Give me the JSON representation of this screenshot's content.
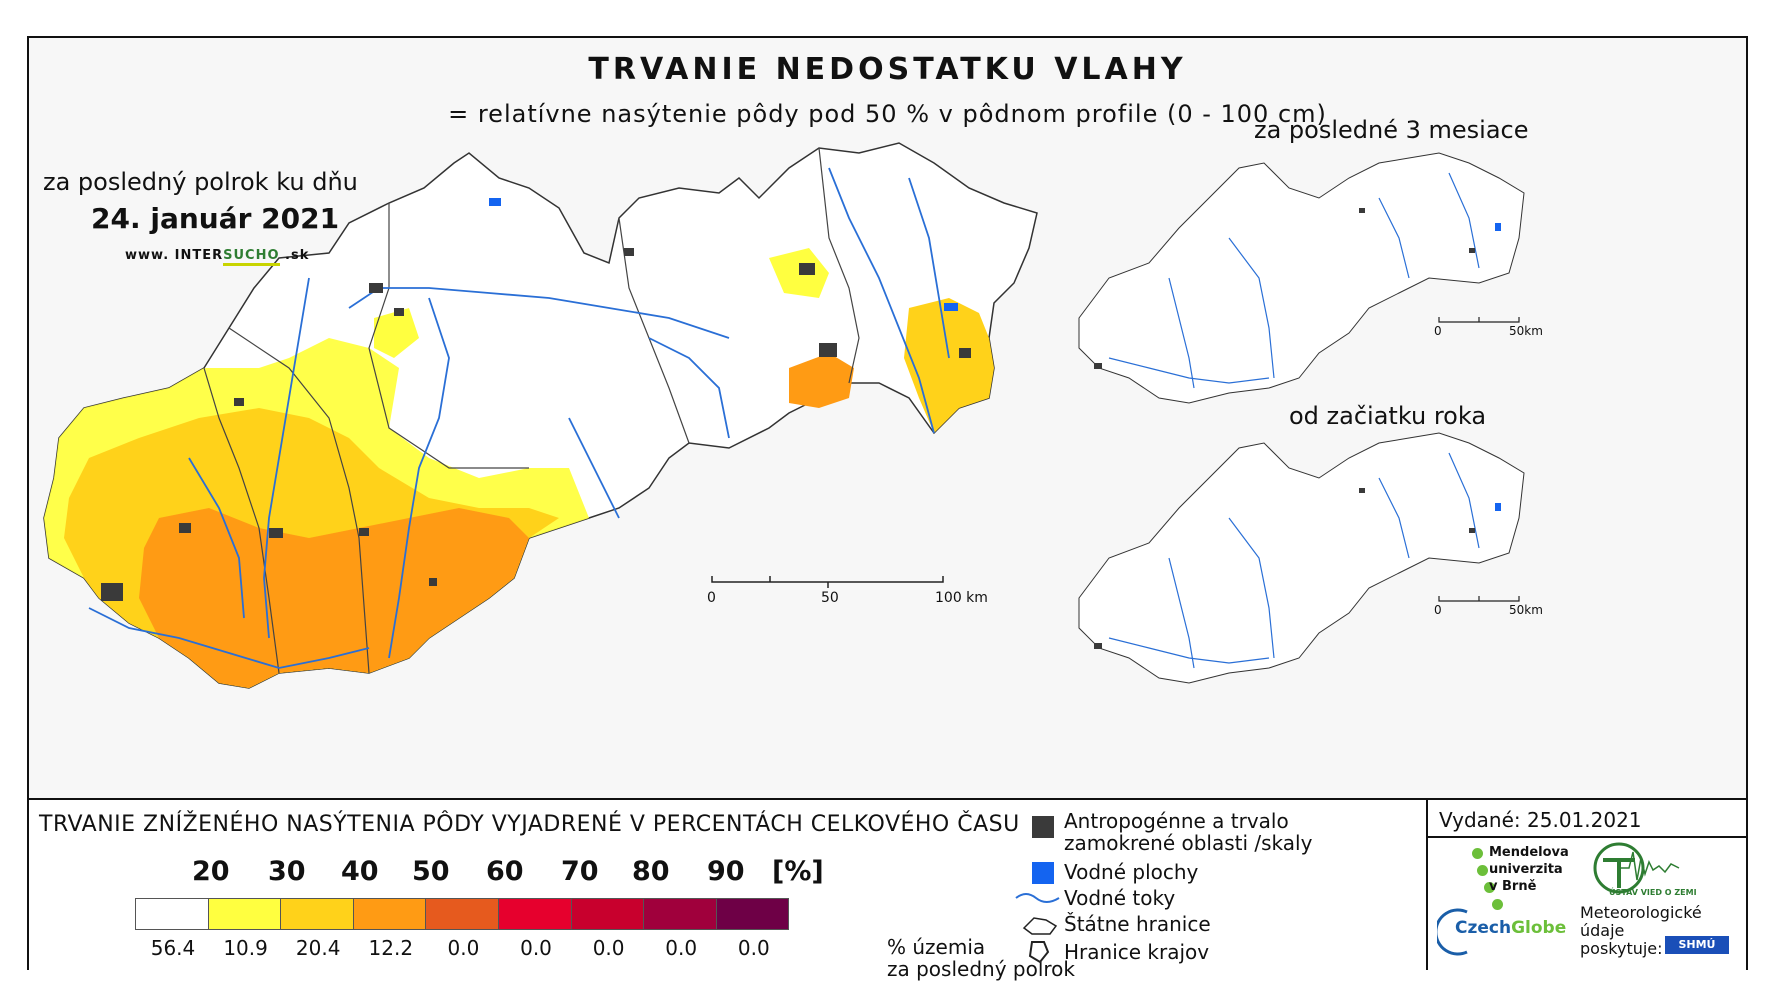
{
  "map": {
    "title": "TRVANIE NEDOSTATKU VLAHY",
    "subtitle": "= relatívne nasýtenie pôdy pod 50 % v pôdnom profile (0 - 100 cm)",
    "main_period": "za posledný polrok ku dňu",
    "main_date": "24. január 2021",
    "website_prefix": "www. INTER",
    "website_mid": "SUCHO",
    "website_suffix": " .sk",
    "main_scale": {
      "labels": [
        "0",
        "50",
        "100 km"
      ]
    },
    "inset_3m_title": "za posledné 3 mesiace",
    "inset_year_title": "od začiatku roka",
    "inset_scale": {
      "labels": [
        "0",
        "50km"
      ]
    }
  },
  "legend": {
    "title": "TRVANIE ZNÍŽENÉHO NASÝTENIA PÔDY VYJADRENÉ V PERCENTÁCH CELKOVÉHO ČASU",
    "thresholds": [
      "20",
      "30",
      "40",
      "50",
      "60",
      "70",
      "80",
      "90",
      "[%]"
    ],
    "classes": [
      {
        "color": "#ffffff",
        "share": "56.4"
      },
      {
        "color": "#ffff40",
        "share": "10.9"
      },
      {
        "color": "#ffd21a",
        "share": "20.4"
      },
      {
        "color": "#ff9b14",
        "share": "12.2"
      },
      {
        "color": "#e65a1e",
        "share": "0.0"
      },
      {
        "color": "#e6002d",
        "share": "0.0"
      },
      {
        "color": "#c8002d",
        "share": "0.0"
      },
      {
        "color": "#a0003c",
        "share": "0.0"
      },
      {
        "color": "#6e0046",
        "share": "0.0"
      }
    ],
    "share_unit_line1": "% územia",
    "share_unit_line2": "za posledný polrok",
    "key": {
      "anthropogenic_line1": "Antropogénne a trvalo",
      "anthropogenic_line2": "zamokrené oblasti /skaly",
      "water_bodies": "Vodné plochy",
      "rivers": "Vodné toky",
      "state_border": "Štátne hranice",
      "region_border": "Hranice krajov"
    },
    "colors": {
      "anthropogenic": "#3a3a3a",
      "water": "#1464f0",
      "river": "#2a6fd6"
    }
  },
  "credits": {
    "issued": "Vydané: 25.01.2021",
    "mendel_line1": "Mendelova",
    "mendel_line2": "univerzita",
    "mendel_line3": "v Brně",
    "czechglobe_a": "Czech",
    "czechglobe_b": "Globe",
    "uvz": "ÚSTAV VIED O ZEMI",
    "meteo_line1": "Meteorologické",
    "meteo_line2": "údaje",
    "meteo_line3": "poskytuje:",
    "shmu": "SHMÚ"
  }
}
